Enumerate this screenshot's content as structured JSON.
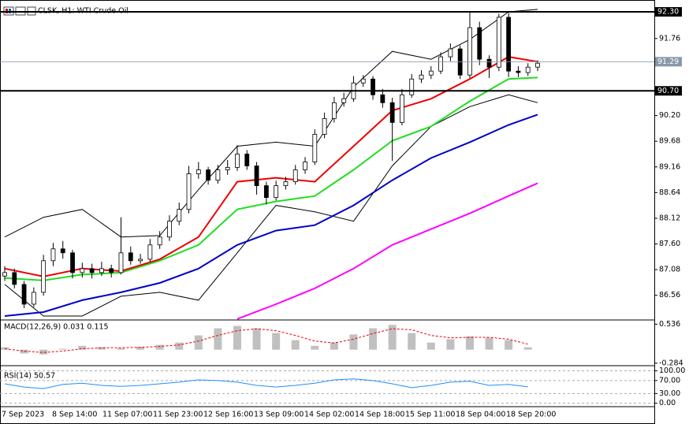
{
  "chart_data": [
    {
      "type": "candlestick",
      "title": "CLSK, H1: WTI Crude Oil",
      "x_labels": [
        "7 Sep 2023",
        "8 Sep 14:00",
        "11 Sep 07:00",
        "11 Sep 23:00",
        "12 Sep 16:00",
        "13 Sep 09:00",
        "14 Sep 02:00",
        "14 Sep 18:00",
        "15 Sep 11:00",
        "18 Sep 04:00",
        "18 Sep 20:00"
      ],
      "open": [
        86.95,
        87.02,
        86.78,
        86.38,
        86.62,
        87.26,
        87.5,
        87.42,
        87.02,
        87.1,
        87.02,
        87.1,
        87.02,
        87.42,
        87.26,
        87.29,
        87.58,
        87.74,
        88.06,
        88.3,
        89.02,
        89.1,
        88.89,
        89.1,
        89.15,
        89.42,
        89.18,
        88.78,
        88.54,
        88.78,
        88.86,
        89.1,
        89.26,
        89.82,
        90.14,
        90.46,
        90.54,
        90.86,
        90.94,
        90.62,
        90.46,
        90.06,
        90.62,
        90.94,
        91.02,
        91.1,
        91.39,
        91.55,
        91.02,
        91.98,
        91.34,
        91.18,
        92.19,
        91.1,
        91.07,
        91.18
      ],
      "high": [
        87.15,
        87.1,
        86.85,
        86.72,
        87.38,
        87.62,
        87.66,
        87.48,
        87.22,
        87.2,
        87.24,
        87.18,
        88.14,
        87.55,
        87.4,
        87.7,
        87.86,
        88.18,
        88.44,
        89.18,
        89.26,
        89.16,
        89.2,
        89.3,
        89.6,
        89.5,
        89.26,
        88.86,
        88.88,
        88.96,
        89.2,
        89.36,
        89.92,
        90.26,
        90.58,
        90.66,
        91.0,
        91.02,
        91.0,
        90.74,
        90.56,
        90.74,
        91.04,
        91.12,
        91.2,
        91.48,
        91.66,
        91.62,
        92.3,
        92.1,
        91.42,
        92.26,
        92.28,
        91.2,
        91.26,
        91.32
      ],
      "low": [
        86.85,
        86.7,
        86.3,
        86.32,
        86.55,
        87.15,
        87.3,
        86.9,
        86.92,
        86.9,
        86.95,
        86.92,
        86.98,
        87.18,
        87.2,
        87.24,
        87.5,
        87.66,
        87.98,
        88.22,
        88.92,
        88.8,
        88.82,
        89.0,
        89.08,
        89.1,
        88.6,
        88.4,
        88.48,
        88.7,
        88.8,
        89.02,
        89.2,
        89.74,
        90.06,
        90.38,
        90.48,
        90.78,
        90.52,
        90.36,
        89.28,
        90.0,
        90.56,
        90.86,
        90.94,
        91.04,
        91.3,
        90.94,
        90.96,
        91.22,
        90.96,
        91.1,
        90.98,
        90.98,
        91.0,
        91.1
      ],
      "close": [
        87.02,
        86.78,
        86.38,
        86.62,
        87.26,
        87.5,
        87.42,
        87.02,
        87.1,
        87.02,
        87.1,
        87.02,
        87.42,
        87.26,
        87.29,
        87.58,
        87.74,
        88.06,
        88.3,
        89.02,
        89.1,
        88.89,
        89.1,
        89.15,
        89.42,
        89.18,
        88.78,
        88.54,
        88.78,
        88.86,
        89.1,
        89.26,
        89.82,
        90.14,
        90.46,
        90.54,
        90.86,
        90.94,
        90.62,
        90.46,
        90.06,
        90.62,
        90.94,
        91.02,
        91.1,
        91.39,
        91.55,
        91.02,
        91.98,
        91.34,
        91.18,
        92.19,
        91.1,
        91.07,
        91.18,
        91.26
      ],
      "line_x": [
        0,
        4,
        8,
        12,
        16,
        20,
        24,
        28,
        32,
        36,
        40,
        44,
        48,
        52,
        55
      ],
      "series": [
        {
          "color": "#000000",
          "values": [
            87.74,
            88.14,
            88.3,
            87.74,
            87.77,
            88.7,
            89.58,
            89.66,
            89.58,
            90.78,
            91.5,
            91.34,
            91.74,
            92.3,
            92.35
          ]
        },
        {
          "color": "#000000",
          "values": [
            86.78,
            86.14,
            86.14,
            86.54,
            86.62,
            86.46,
            87.42,
            88.38,
            88.25,
            88.06,
            89.18,
            89.98,
            90.38,
            90.62,
            90.46
          ]
        },
        {
          "color": "#ff00ff",
          "values": [
            null,
            null,
            null,
            null,
            null,
            null,
            86.08,
            86.38,
            86.7,
            87.1,
            87.58,
            87.9,
            88.22,
            88.57,
            88.83
          ]
        },
        {
          "color": "#0000c8",
          "values": [
            86.14,
            86.22,
            86.46,
            86.62,
            86.81,
            87.1,
            87.58,
            87.87,
            87.98,
            88.38,
            88.89,
            89.34,
            89.66,
            90.01,
            90.22
          ]
        },
        {
          "color": "#22dd22",
          "values": [
            86.91,
            86.86,
            86.98,
            87.02,
            87.26,
            87.58,
            88.3,
            88.46,
            88.57,
            89.1,
            89.69,
            89.98,
            90.49,
            90.94,
            90.97
          ]
        },
        {
          "color": "#ee0000",
          "values": [
            87.1,
            86.94,
            87.1,
            87.05,
            87.29,
            87.74,
            88.86,
            88.94,
            88.86,
            89.58,
            90.3,
            90.54,
            90.94,
            91.39,
            91.29
          ]
        }
      ],
      "ylim": [
        86.06,
        92.54
      ],
      "yticks": [
        {
          "value": 91.76,
          "label": "91.76"
        },
        {
          "value": 90.2,
          "label": "90.20"
        },
        89.68,
        89.16,
        88.64,
        88.12,
        {
          "value": 87.6,
          "label": "87.60"
        },
        87.08,
        86.56
      ],
      "levels": [
        {
          "value": 92.3,
          "label": "92.30"
        },
        {
          "value": 90.7,
          "label": "90.70"
        }
      ],
      "current_price": {
        "value": 91.29,
        "label": "91.29"
      }
    },
    {
      "type": "macd",
      "title": "MACD(12,26,9) 0.031 0.115",
      "x": [
        0,
        2,
        4,
        6,
        8,
        10,
        12,
        14,
        16,
        18,
        20,
        22,
        24,
        26,
        28,
        30,
        32,
        34,
        36,
        38,
        40,
        42,
        44,
        46,
        48,
        50,
        52,
        54
      ],
      "histogram": [
        0.05,
        -0.08,
        -0.1,
        0.02,
        0.08,
        0.05,
        0.03,
        0.06,
        0.1,
        0.15,
        0.3,
        0.45,
        0.5,
        0.45,
        0.35,
        0.2,
        0.08,
        0.15,
        0.32,
        0.45,
        0.52,
        0.35,
        0.15,
        0.22,
        0.28,
        0.25,
        0.2,
        0.05
      ],
      "signal": [
        0.02,
        -0.03,
        -0.06,
        -0.03,
        0.02,
        0.04,
        0.04,
        0.05,
        0.07,
        0.1,
        0.18,
        0.3,
        0.4,
        0.44,
        0.4,
        0.3,
        0.18,
        0.14,
        0.22,
        0.34,
        0.44,
        0.42,
        0.3,
        0.25,
        0.26,
        0.26,
        0.22,
        0.115
      ],
      "color": "#c0c0c0",
      "signal_color": "#ee0000",
      "ylim": [
        -0.337,
        0.625
      ],
      "yticks": [
        0.536,
        -0.284
      ]
    },
    {
      "type": "line",
      "title": "RSI(14) 50.57",
      "x": [
        0,
        2,
        4,
        6,
        8,
        10,
        12,
        14,
        16,
        18,
        20,
        22,
        24,
        26,
        28,
        30,
        32,
        34,
        36,
        38,
        40,
        42,
        44,
        46,
        48,
        50,
        52,
        54
      ],
      "values": [
        60,
        50,
        45,
        58,
        62,
        55,
        52,
        55,
        60,
        65,
        72,
        70,
        65,
        55,
        50,
        55,
        62,
        72,
        75,
        70,
        60,
        48,
        55,
        65,
        68,
        55,
        58,
        50.57
      ],
      "color": "#1e90ff",
      "ylim": [
        -10.5,
        115.8
      ],
      "yticks": [
        {
          "value": 100,
          "label": "100.00"
        },
        {
          "value": 70,
          "label": "70.00"
        },
        {
          "value": 30,
          "label": "30.00"
        },
        {
          "value": 0,
          "label": "0.00"
        }
      ]
    }
  ]
}
